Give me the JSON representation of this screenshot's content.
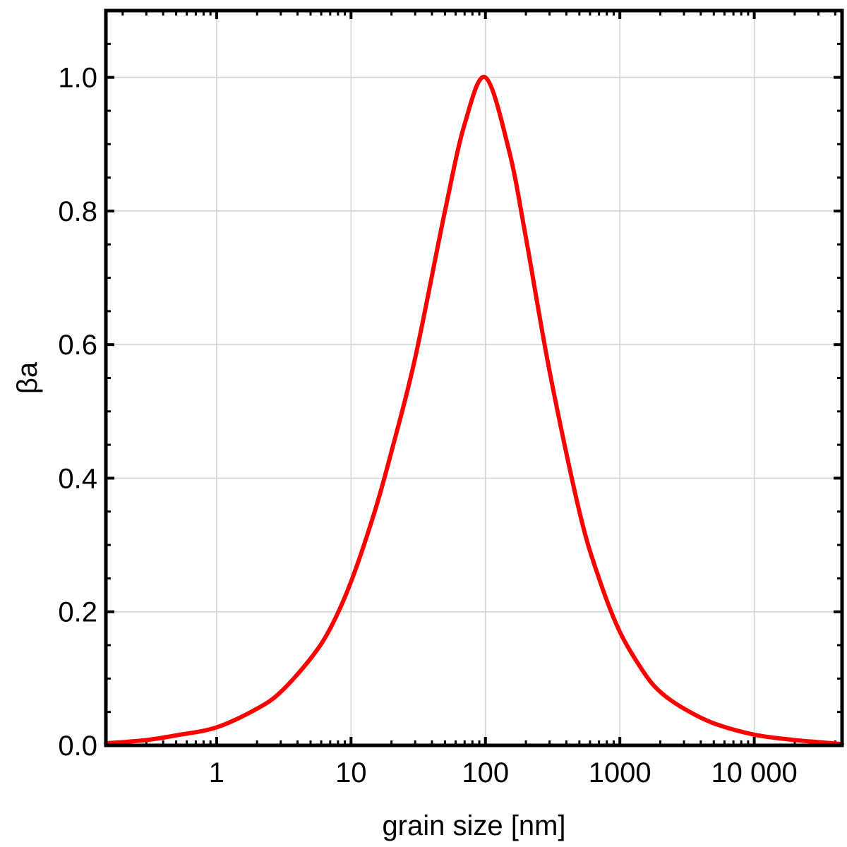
{
  "chart_data": {
    "type": "line",
    "xlabel": "grain size [nm]",
    "ylabel": "βa",
    "xscale": "log",
    "xlim": [
      0.15,
      45000
    ],
    "ylim": [
      0,
      1.1
    ],
    "grid": true,
    "x_ticks": [
      {
        "value": 1,
        "label": "1"
      },
      {
        "value": 10,
        "label": "10"
      },
      {
        "value": 100,
        "label": "100"
      },
      {
        "value": 1000,
        "label": "1000"
      },
      {
        "value": 10000,
        "label": "10 000"
      }
    ],
    "y_ticks": [
      {
        "value": 0.0,
        "label": "0.0"
      },
      {
        "value": 0.2,
        "label": "0.2"
      },
      {
        "value": 0.4,
        "label": "0.4"
      },
      {
        "value": 0.6,
        "label": "0.6"
      },
      {
        "value": 0.8,
        "label": "0.8"
      },
      {
        "value": 1.0,
        "label": "1.0"
      }
    ],
    "series": [
      {
        "color": "#ff0000",
        "x": [
          0.15,
          0.3,
          0.5,
          1,
          2,
          3,
          5,
          7,
          10,
          15,
          20,
          30,
          50,
          70,
          100,
          150,
          200,
          300,
          500,
          700,
          1000,
          1500,
          2000,
          3000,
          5000,
          10000,
          20000,
          45000
        ],
        "y": [
          0.003,
          0.008,
          0.015,
          0.027,
          0.055,
          0.08,
          0.13,
          0.175,
          0.245,
          0.35,
          0.44,
          0.58,
          0.8,
          0.93,
          1.0,
          0.89,
          0.76,
          0.56,
          0.35,
          0.25,
          0.17,
          0.11,
          0.08,
          0.055,
          0.033,
          0.016,
          0.008,
          0.002
        ]
      }
    ]
  }
}
